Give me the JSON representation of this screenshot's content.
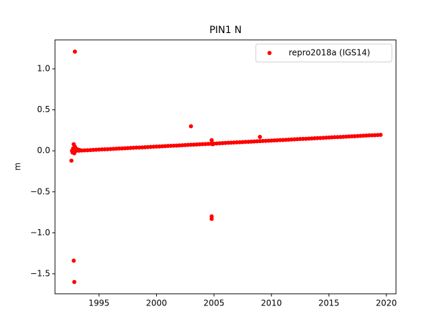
{
  "chart_data": {
    "type": "scatter",
    "title": "PIN1 N",
    "y_label": "m",
    "xlim": [
      1991.17,
      2020.84
    ],
    "ylim": [
      -1.744,
      1.353
    ],
    "xticks": [
      1995,
      2000,
      2005,
      2010,
      2015,
      2020
    ],
    "yticks": [
      {
        "value": -1.5,
        "label": "−1.5"
      },
      {
        "value": -1.0,
        "label": "−1.0"
      },
      {
        "value": -0.5,
        "label": "−0.5"
      },
      {
        "value": 0.0,
        "label": "0.0"
      },
      {
        "value": 0.5,
        "label": "0.5"
      },
      {
        "value": 1.0,
        "label": "1.0"
      }
    ],
    "legend": "upper right",
    "grid": false,
    "series": [
      {
        "name": "repro2018a (IGS14)",
        "color": "#ff0000",
        "x": [
          1993,
          1993.25,
          1993.5,
          1993.75,
          1994,
          1994.25,
          1994.5,
          1994.75,
          1995,
          1995.25,
          1995.5,
          1995.75,
          1996,
          1996.25,
          1996.5,
          1996.75,
          1997,
          1997.25,
          1997.5,
          1997.75,
          1998,
          1998.25,
          1998.5,
          1998.75,
          1999,
          1999.25,
          1999.5,
          1999.75,
          2000,
          2000.25,
          2000.5,
          2000.75,
          2001,
          2001.25,
          2001.5,
          2001.75,
          2002,
          2002.25,
          2002.5,
          2002.75,
          2003,
          2003.25,
          2003.5,
          2003.75,
          2004,
          2004.25,
          2004.5,
          2004.75,
          2005,
          2005.25,
          2005.5,
          2005.75,
          2006,
          2006.25,
          2006.5,
          2006.75,
          2007,
          2007.25,
          2007.5,
          2007.75,
          2008,
          2008.25,
          2008.5,
          2008.75,
          2009,
          2009.25,
          2009.5,
          2009.75,
          2010,
          2010.25,
          2010.5,
          2010.75,
          2011,
          2011.25,
          2011.5,
          2011.75,
          2012,
          2012.25,
          2012.5,
          2012.75,
          2013,
          2013.25,
          2013.5,
          2013.75,
          2014,
          2014.25,
          2014.5,
          2014.75,
          2015,
          2015.25,
          2015.5,
          2015.75,
          2016,
          2016.25,
          2016.5,
          2016.75,
          2017,
          2017.25,
          2017.5,
          2017.75,
          2018,
          2018.25,
          2018.5,
          2018.75,
          2019,
          2019.25,
          2019.5,
          1992.6,
          1992.65,
          1992.7,
          1992.75,
          1992.8,
          1992.85,
          1992.9,
          1993.1,
          1993.3,
          1992.9,
          1992.8,
          1992.85,
          2003,
          2004.8,
          2004.8,
          2009,
          2004.8,
          2004.9
        ],
        "values": [
          0.0,
          0.002,
          0.004,
          0.006,
          0.007,
          0.009,
          0.011,
          0.013,
          0.015,
          0.017,
          0.018,
          0.02,
          0.022,
          0.024,
          0.026,
          0.028,
          0.029,
          0.031,
          0.033,
          0.035,
          0.037,
          0.039,
          0.04,
          0.042,
          0.044,
          0.046,
          0.048,
          0.05,
          0.052,
          0.053,
          0.055,
          0.057,
          0.059,
          0.061,
          0.063,
          0.064,
          0.066,
          0.068,
          0.07,
          0.072,
          0.074,
          0.075,
          0.077,
          0.079,
          0.081,
          0.083,
          0.085,
          0.086,
          0.088,
          0.09,
          0.092,
          0.094,
          0.096,
          0.098,
          0.099,
          0.101,
          0.103,
          0.105,
          0.107,
          0.109,
          0.11,
          0.112,
          0.114,
          0.116,
          0.118,
          0.12,
          0.121,
          0.123,
          0.125,
          0.127,
          0.129,
          0.131,
          0.132,
          0.134,
          0.136,
          0.138,
          0.14,
          0.142,
          0.144,
          0.145,
          0.147,
          0.149,
          0.151,
          0.153,
          0.155,
          0.156,
          0.158,
          0.16,
          0.162,
          0.164,
          0.166,
          0.167,
          0.169,
          0.171,
          0.173,
          0.175,
          0.177,
          0.178,
          0.18,
          0.182,
          0.184,
          0.186,
          0.188,
          0.19,
          0.191,
          0.193,
          0.195,
          -0.12,
          0.0,
          -0.02,
          0.03,
          0.08,
          -0.03,
          0.05,
          0.02,
          0.01,
          1.21,
          -1.34,
          -1.6,
          0.3,
          -0.8,
          -0.83,
          0.17,
          0.13,
          0.08
        ]
      }
    ]
  }
}
